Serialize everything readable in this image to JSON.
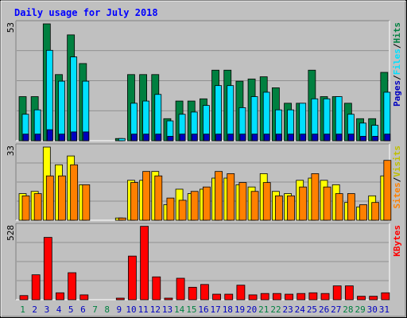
{
  "chart_data": [
    {
      "type": "bar",
      "title": "Daily usage for July 2018",
      "categories": [
        "1",
        "2",
        "3",
        "4",
        "5",
        "6",
        "7",
        "8",
        "9",
        "10",
        "11",
        "12",
        "13",
        "14",
        "15",
        "16",
        "17",
        "18",
        "19",
        "20",
        "21",
        "22",
        "23",
        "24",
        "25",
        "26",
        "27",
        "28",
        "29",
        "30",
        "31"
      ],
      "weekend_days": [
        "1",
        "7",
        "8",
        "14",
        "15",
        "21",
        "22",
        "28",
        "29"
      ],
      "ymax_label": "53",
      "ylim": [
        0,
        53
      ],
      "right_label_parts": [
        "Pages",
        "/",
        "Files",
        "/",
        "Hits"
      ],
      "series": [
        {
          "name": "Hits",
          "color": "#008040",
          "values": [
            20,
            20,
            53,
            30,
            48,
            35,
            0,
            0,
            1,
            30,
            30,
            30,
            10,
            18,
            18,
            19,
            32,
            32,
            27,
            28,
            29,
            24,
            17,
            17,
            32,
            20,
            20,
            17,
            10,
            10,
            31
          ]
        },
        {
          "name": "Files",
          "color": "#00e0ff",
          "values": [
            12,
            14,
            41,
            27,
            38,
            27,
            0,
            0,
            1,
            17,
            18,
            21,
            9,
            12,
            13,
            16,
            25,
            25,
            15,
            20,
            22,
            14,
            14,
            17,
            19,
            19,
            20,
            12,
            8,
            7,
            22
          ]
        },
        {
          "name": "Pages",
          "color": "#0000c0",
          "values": [
            3,
            3,
            5,
            3,
            4,
            4,
            0,
            0,
            0,
            3,
            3,
            3,
            2,
            3,
            3,
            3,
            3,
            3,
            3,
            3,
            3,
            3,
            3,
            3,
            3,
            3,
            3,
            3,
            2,
            2,
            3
          ]
        }
      ]
    },
    {
      "type": "bar",
      "categories": [
        "1",
        "2",
        "3",
        "4",
        "5",
        "6",
        "7",
        "8",
        "9",
        "10",
        "11",
        "12",
        "13",
        "14",
        "15",
        "16",
        "17",
        "18",
        "19",
        "20",
        "21",
        "22",
        "23",
        "24",
        "25",
        "26",
        "27",
        "28",
        "29",
        "30",
        "31"
      ],
      "ymax_label": "33",
      "ylim": [
        0,
        33
      ],
      "right_label_parts": [
        "Sites",
        "/",
        "Visits"
      ],
      "series": [
        {
          "name": "Visits",
          "color": "#ffff00",
          "values": [
            12,
            13,
            33,
            25,
            29,
            16,
            0,
            0,
            1,
            18,
            18,
            22,
            7,
            14,
            12,
            14,
            19,
            19,
            16,
            15,
            21,
            13,
            12,
            18,
            19,
            18,
            16,
            8,
            6,
            11,
            20
          ]
        },
        {
          "name": "Sites",
          "color": "#ff8000",
          "values": [
            11,
            12,
            20,
            20,
            25,
            16,
            0,
            0,
            1,
            17,
            22,
            20,
            10,
            9,
            13,
            15,
            22,
            21,
            17,
            13,
            17,
            11,
            11,
            15,
            21,
            15,
            12,
            12,
            7,
            8,
            27
          ]
        }
      ]
    },
    {
      "type": "bar",
      "categories": [
        "1",
        "2",
        "3",
        "4",
        "5",
        "6",
        "7",
        "8",
        "9",
        "10",
        "11",
        "12",
        "13",
        "14",
        "15",
        "16",
        "17",
        "18",
        "19",
        "20",
        "21",
        "22",
        "23",
        "24",
        "25",
        "26",
        "27",
        "28",
        "29",
        "30",
        "31"
      ],
      "ymax_label": "528",
      "ylim": [
        0,
        528
      ],
      "right_label_parts": [
        "KBytes"
      ],
      "series": [
        {
          "name": "KBytes",
          "color": "#ff0000",
          "values": [
            30,
            180,
            450,
            50,
            195,
            35,
            0,
            0,
            6,
            315,
            530,
            165,
            10,
            155,
            90,
            110,
            40,
            40,
            105,
            35,
            45,
            45,
            40,
            45,
            50,
            45,
            100,
            100,
            25,
            25,
            50
          ]
        }
      ]
    }
  ],
  "colors": {
    "frame_bg": "#c0c0c0",
    "plot_bg": "#c0c0c0",
    "title": "#0000ff",
    "weekday_label": "#0000c0",
    "weekend_label": "#008040",
    "slash": "#000000"
  }
}
